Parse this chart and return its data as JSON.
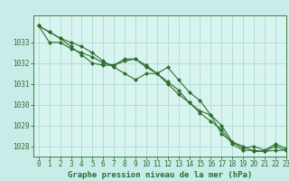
{
  "title": "Graphe pression niveau de la mer (hPa)",
  "bg_color": "#c8ece8",
  "plot_bg_color": "#d8f4f0",
  "line_color": "#2d6e2d",
  "grid_color": "#a8d4cc",
  "text_color": "#2d6e2d",
  "xlim": [
    -0.5,
    23
  ],
  "ylim": [
    1027.5,
    1034.3
  ],
  "yticks": [
    1028,
    1029,
    1030,
    1031,
    1032,
    1033
  ],
  "xticks": [
    0,
    1,
    2,
    3,
    4,
    5,
    6,
    7,
    8,
    9,
    10,
    11,
    12,
    13,
    14,
    15,
    16,
    17,
    18,
    19,
    20,
    21,
    22,
    23
  ],
  "series": [
    [
      1033.8,
      1033.5,
      1033.2,
      1033.0,
      1032.8,
      1032.5,
      1032.1,
      1031.8,
      1031.5,
      1031.2,
      1031.5,
      1031.5,
      1031.8,
      1031.2,
      1030.6,
      1030.2,
      1029.5,
      1029.0,
      1028.2,
      1027.9,
      1028.0,
      1027.8,
      1028.1,
      1027.9
    ],
    [
      1033.8,
      1033.5,
      1033.2,
      1032.8,
      1032.4,
      1032.0,
      1031.9,
      1031.9,
      1032.2,
      1032.2,
      1031.8,
      1031.5,
      1031.0,
      1030.5,
      1030.1,
      1029.6,
      1029.2,
      1028.8,
      1028.1,
      1027.8,
      1027.8,
      1027.75,
      1027.8,
      1027.8
    ],
    [
      1033.8,
      1033.0,
      1033.0,
      1032.7,
      1032.5,
      1032.3,
      1032.0,
      1031.9,
      1032.1,
      1032.2,
      1031.9,
      1031.5,
      1031.1,
      1030.7,
      1030.1,
      1029.7,
      1029.5,
      1028.6,
      1028.2,
      1028.0,
      1027.75,
      1027.75,
      1028.0,
      1027.8
    ]
  ],
  "tick_fontsize": 5.5,
  "label_fontsize": 6.5
}
